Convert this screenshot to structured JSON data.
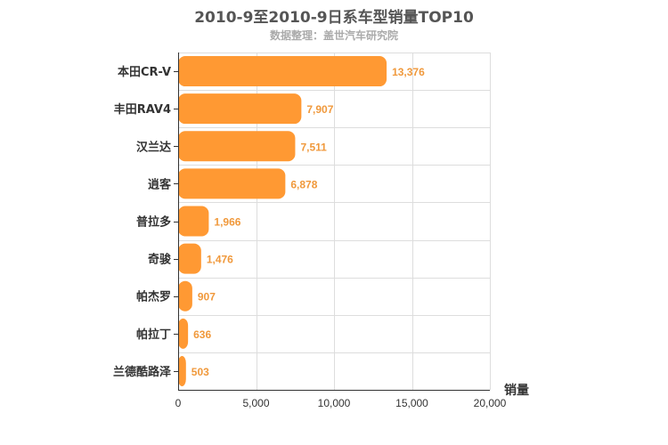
{
  "chart_data": {
    "type": "bar",
    "orientation": "horizontal",
    "title": "2010-9至2010-9日系车型销量TOP10",
    "subtitle": "数据整理：盖世汽车研究院",
    "categories": [
      "本田CR-V",
      "丰田RAV4",
      "汉兰达",
      "逍客",
      "普拉多",
      "奇骏",
      "帕杰罗",
      "帕拉丁",
      "兰德酷路泽"
    ],
    "values": [
      13376,
      7907,
      7511,
      6878,
      1966,
      1476,
      907,
      636,
      503
    ],
    "value_labels": [
      "13,376",
      "7,907",
      "7,511",
      "6,878",
      "1,966",
      "1,476",
      "907",
      "636",
      "503"
    ],
    "xlabel": "销量",
    "ylabel": "",
    "xlim": [
      0,
      20000
    ],
    "xticks": [
      0,
      5000,
      10000,
      15000,
      20000
    ],
    "xtick_labels": [
      "0",
      "5,000",
      "10,000",
      "15,000",
      "20,000"
    ],
    "grid": true,
    "bar_color": "#ff9933",
    "label_color": "#f0993c"
  }
}
